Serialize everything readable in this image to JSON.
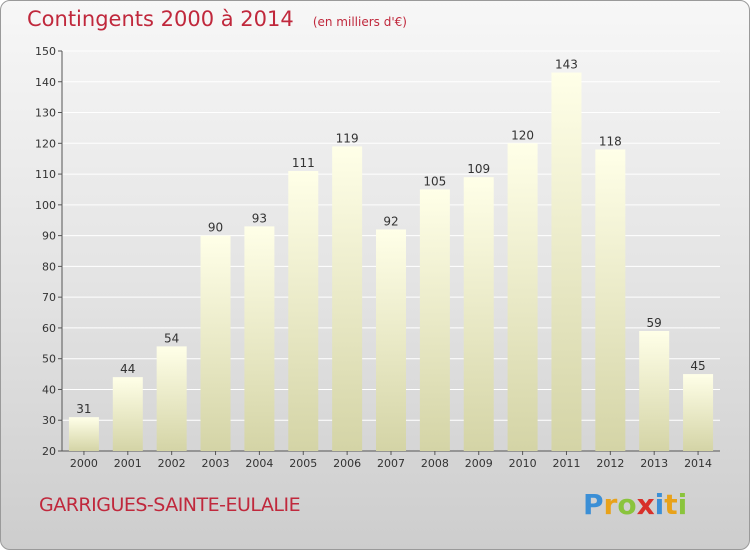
{
  "header": {
    "title": "Contingents 2000 à 2014",
    "subtitle": "(en milliers d'€)"
  },
  "footer": {
    "place": "GARRIGUES-SAINTE-EULALIE",
    "logo_letters": [
      "P",
      "r",
      "o",
      "x",
      "i",
      "t",
      "i"
    ],
    "logo_colors": [
      "#3b8fd6",
      "#e8a21a",
      "#8ac43c",
      "#d8302a",
      "#3b8fd6",
      "#e8a21a",
      "#8ac43c"
    ]
  },
  "colors": {
    "title": "#c0283c",
    "bar_top": "#ffffe8",
    "bar_bottom": "#d4d4a6"
  },
  "chart_data": {
    "type": "bar",
    "title": "Contingents 2000 à 2014",
    "subtitle": "(en milliers d'€)",
    "xlabel": "",
    "ylabel": "",
    "categories": [
      "2000",
      "2001",
      "2002",
      "2003",
      "2004",
      "2005",
      "2006",
      "2007",
      "2008",
      "2009",
      "2010",
      "2011",
      "2012",
      "2013",
      "2014"
    ],
    "values": [
      31,
      44,
      54,
      90,
      93,
      111,
      119,
      92,
      105,
      109,
      120,
      143,
      118,
      59,
      45
    ],
    "ylim": [
      20,
      150
    ],
    "yticks": [
      20,
      30,
      40,
      50,
      60,
      70,
      80,
      90,
      100,
      110,
      120,
      130,
      140,
      150
    ],
    "grid": true,
    "legend": "none"
  }
}
